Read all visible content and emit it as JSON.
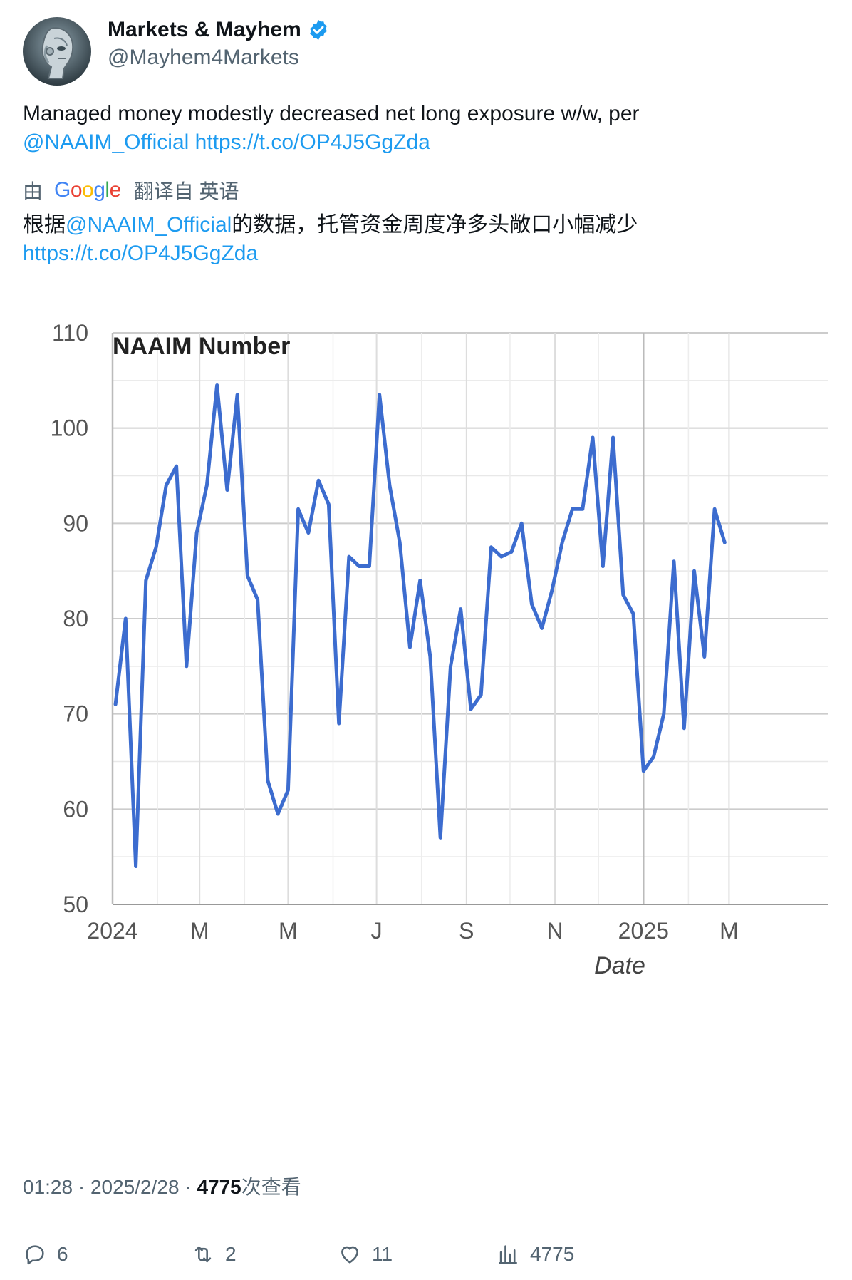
{
  "author": {
    "display_name": "Markets & Mayhem",
    "handle": "@Mayhem4Markets",
    "verified": true,
    "avatar_icon": "robot-avatar"
  },
  "tweet": {
    "text_main": "Managed money modestly decreased net long exposure w/w, per",
    "mention": "@NAAIM_Official",
    "link": "https://t.co/OP4J5GgZda"
  },
  "translation": {
    "prefix": "由",
    "google": "Google",
    "suffix": "翻译自 英语",
    "text_before": "根据",
    "mention": "@NAAIM_Official",
    "text_after": "的数据，托管资金周度净多头敞口小幅减少",
    "link": "https://t.co/OP4J5GgZda"
  },
  "meta": {
    "time": "01:28",
    "separator": "·",
    "date": "2025/2/28",
    "views": "4775",
    "views_label": "次查看"
  },
  "actions": {
    "replies": "6",
    "retweets": "2",
    "likes": "11",
    "views": "4775"
  },
  "colors": {
    "line": "#3c6ccf",
    "grid": "#cccccc",
    "link": "#1d9bf0",
    "verified": "#1d9bf0"
  },
  "chart_data": {
    "type": "line",
    "title": "NAAIM Number",
    "xlabel": "Date",
    "ylabel": "",
    "ylim": [
      50,
      110
    ],
    "yticks": [
      50,
      60,
      70,
      80,
      90,
      100,
      110
    ],
    "xlim": [
      "2024-01-01",
      "2025-03-10"
    ],
    "xticks": [
      {
        "label": "2024",
        "date": "2024-01-01"
      },
      {
        "label": "M",
        "date": "2024-03-01"
      },
      {
        "label": "M",
        "date": "2024-05-01"
      },
      {
        "label": "J",
        "date": "2024-07-01"
      },
      {
        "label": "S",
        "date": "2024-09-01"
      },
      {
        "label": "N",
        "date": "2024-11-01"
      },
      {
        "label": "2025",
        "date": "2025-01-01"
      },
      {
        "label": "M",
        "date": "2025-03-01"
      }
    ],
    "grid": true,
    "series": [
      {
        "name": "",
        "x": [
          "2024-01-03",
          "2024-01-10",
          "2024-01-17",
          "2024-01-24",
          "2024-01-31",
          "2024-02-07",
          "2024-02-14",
          "2024-02-21",
          "2024-02-28",
          "2024-03-06",
          "2024-03-13",
          "2024-03-20",
          "2024-03-27",
          "2024-04-03",
          "2024-04-10",
          "2024-04-17",
          "2024-04-24",
          "2024-05-01",
          "2024-05-08",
          "2024-05-15",
          "2024-05-22",
          "2024-05-29",
          "2024-06-05",
          "2024-06-12",
          "2024-06-19",
          "2024-06-26",
          "2024-07-03",
          "2024-07-10",
          "2024-07-17",
          "2024-07-24",
          "2024-07-31",
          "2024-08-07",
          "2024-08-14",
          "2024-08-21",
          "2024-08-28",
          "2024-09-04",
          "2024-09-11",
          "2024-09-18",
          "2024-09-25",
          "2024-10-02",
          "2024-10-09",
          "2024-10-16",
          "2024-10-23",
          "2024-10-30",
          "2024-11-06",
          "2024-11-13",
          "2024-11-20",
          "2024-11-27",
          "2024-12-04",
          "2024-12-11",
          "2024-12-18",
          "2024-12-25",
          "2025-01-01",
          "2025-01-08",
          "2025-01-15",
          "2025-01-22",
          "2025-01-29",
          "2025-02-05",
          "2025-02-12",
          "2025-02-19",
          "2025-02-26"
        ],
        "values": [
          71.0,
          80.0,
          54.0,
          84.0,
          87.5,
          94.0,
          96.0,
          75.0,
          89.0,
          94.0,
          104.5,
          93.5,
          103.5,
          84.5,
          82.0,
          63.0,
          59.5,
          62.0,
          91.5,
          89.0,
          94.5,
          92.0,
          69.0,
          86.5,
          85.5,
          85.5,
          103.5,
          94.0,
          88.0,
          77.0,
          84.0,
          76.0,
          57.0,
          75.0,
          81.0,
          70.5,
          72.0,
          87.5,
          86.5,
          87.0,
          90.0,
          81.5,
          79.0,
          83.0,
          88.0,
          91.5,
          91.5,
          99.0,
          85.5,
          99.0,
          82.5,
          80.5,
          64.0,
          65.5,
          70.0,
          86.0,
          68.5,
          85.0,
          76.0,
          91.5,
          88.0
        ]
      }
    ]
  }
}
